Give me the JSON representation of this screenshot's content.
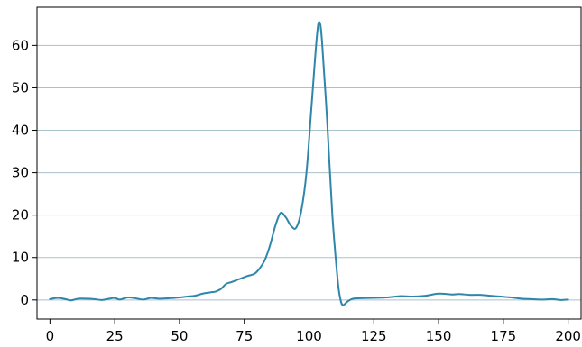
{
  "chart_data": {
    "type": "line",
    "title": "",
    "xlabel": "",
    "ylabel": "",
    "xlim": [
      -5,
      205
    ],
    "ylim": [
      -4.5,
      69
    ],
    "x_ticks": [
      0,
      25,
      50,
      75,
      100,
      125,
      150,
      175,
      200
    ],
    "x_tick_labels": [
      "0",
      "25",
      "50",
      "75",
      "100",
      "125",
      "150",
      "175",
      "200"
    ],
    "y_ticks": [
      0,
      10,
      20,
      30,
      40,
      50,
      60
    ],
    "y_tick_labels": [
      "0",
      "10",
      "20",
      "30",
      "40",
      "50",
      "60"
    ],
    "grid": {
      "x": false,
      "y": true
    },
    "legend": "none",
    "colors": {
      "line": "#2e86ab",
      "grid": "#a9c1cc",
      "axis": "#000000"
    },
    "series": [
      {
        "values": [
          [
            0,
            0.2
          ],
          [
            3,
            0.5
          ],
          [
            6,
            0.2
          ],
          [
            8,
            -0.1
          ],
          [
            11,
            0.3
          ],
          [
            14,
            0.3
          ],
          [
            17,
            0.2
          ],
          [
            20,
            0.0
          ],
          [
            23,
            0.3
          ],
          [
            25,
            0.5
          ],
          [
            27,
            0.1
          ],
          [
            30,
            0.6
          ],
          [
            33,
            0.4
          ],
          [
            36,
            0.1
          ],
          [
            39,
            0.5
          ],
          [
            42,
            0.3
          ],
          [
            46,
            0.4
          ],
          [
            50,
            0.6
          ],
          [
            53,
            0.8
          ],
          [
            56,
            1.0
          ],
          [
            59,
            1.5
          ],
          [
            62,
            1.8
          ],
          [
            64,
            2.0
          ],
          [
            66,
            2.6
          ],
          [
            68,
            3.8
          ],
          [
            70,
            4.2
          ],
          [
            73,
            4.9
          ],
          [
            76,
            5.6
          ],
          [
            79,
            6.2
          ],
          [
            81,
            7.5
          ],
          [
            83,
            9.5
          ],
          [
            85,
            13.0
          ],
          [
            87,
            17.5
          ],
          [
            89,
            20.5
          ],
          [
            91,
            19.5
          ],
          [
            93,
            17.5
          ],
          [
            95,
            17.0
          ],
          [
            97,
            21.0
          ],
          [
            99,
            30.0
          ],
          [
            101,
            46.0
          ],
          [
            103,
            62.0
          ],
          [
            104,
            65.5
          ],
          [
            105,
            61.0
          ],
          [
            107,
            42.0
          ],
          [
            109,
            20.0
          ],
          [
            111,
            5.0
          ],
          [
            112,
            0.5
          ],
          [
            113,
            -1.2
          ],
          [
            115,
            -0.3
          ],
          [
            117,
            0.3
          ],
          [
            120,
            0.4
          ],
          [
            125,
            0.5
          ],
          [
            130,
            0.6
          ],
          [
            135,
            0.9
          ],
          [
            140,
            0.8
          ],
          [
            145,
            1.0
          ],
          [
            150,
            1.5
          ],
          [
            155,
            1.3
          ],
          [
            158,
            1.4
          ],
          [
            162,
            1.2
          ],
          [
            166,
            1.2
          ],
          [
            170,
            1.0
          ],
          [
            174,
            0.8
          ],
          [
            178,
            0.6
          ],
          [
            182,
            0.3
          ],
          [
            186,
            0.2
          ],
          [
            190,
            0.1
          ],
          [
            194,
            0.2
          ],
          [
            197,
            0.0
          ],
          [
            200,
            0.1
          ]
        ]
      }
    ]
  }
}
